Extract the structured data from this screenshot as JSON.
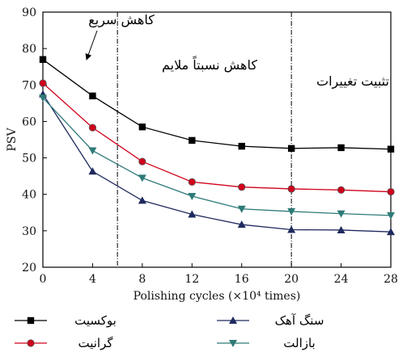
{
  "chart_data": {
    "type": "line",
    "title": "",
    "xlabel": "Polishing cycles (×10⁴ times)",
    "ylabel": "PSV",
    "xlim": [
      0,
      28
    ],
    "ylim": [
      20,
      90
    ],
    "x_ticks": [
      0,
      4,
      8,
      12,
      16,
      20,
      24,
      28
    ],
    "y_ticks": [
      20,
      30,
      40,
      50,
      60,
      70,
      80,
      90
    ],
    "grid": false,
    "x": [
      0,
      4,
      8,
      12,
      16,
      20,
      24,
      28
    ],
    "series": [
      {
        "name": "بوکسیت",
        "color": "#000000",
        "marker": "square",
        "values": [
          77,
          67,
          58.5,
          54.8,
          53.2,
          52.6,
          52.8,
          52.4
        ]
      },
      {
        "name": "گرانیت",
        "color": "#d0021b",
        "marker": "circle",
        "values": [
          70.5,
          58.3,
          49,
          43.4,
          42,
          41.5,
          41.2,
          40.7
        ]
      },
      {
        "name": "سنگ آهک",
        "color": "#1f2a5e",
        "marker": "triangle-up",
        "values": [
          67.5,
          46.3,
          38.3,
          34.5,
          31.7,
          30.3,
          30.2,
          29.7
        ]
      },
      {
        "name": "بازالت",
        "color": "#2e7a78",
        "marker": "triangle-down",
        "values": [
          66.5,
          52,
          44.5,
          39.5,
          36,
          35.3,
          34.7,
          34.2
        ]
      }
    ],
    "vlines": [
      6,
      20
    ],
    "annotations": [
      {
        "text": "کاهش سریع",
        "arrow": true
      },
      {
        "text": "کاهش نسبتاً ملایم"
      },
      {
        "text": "تثبیت تغییرات"
      }
    ],
    "legend": "bottom"
  }
}
